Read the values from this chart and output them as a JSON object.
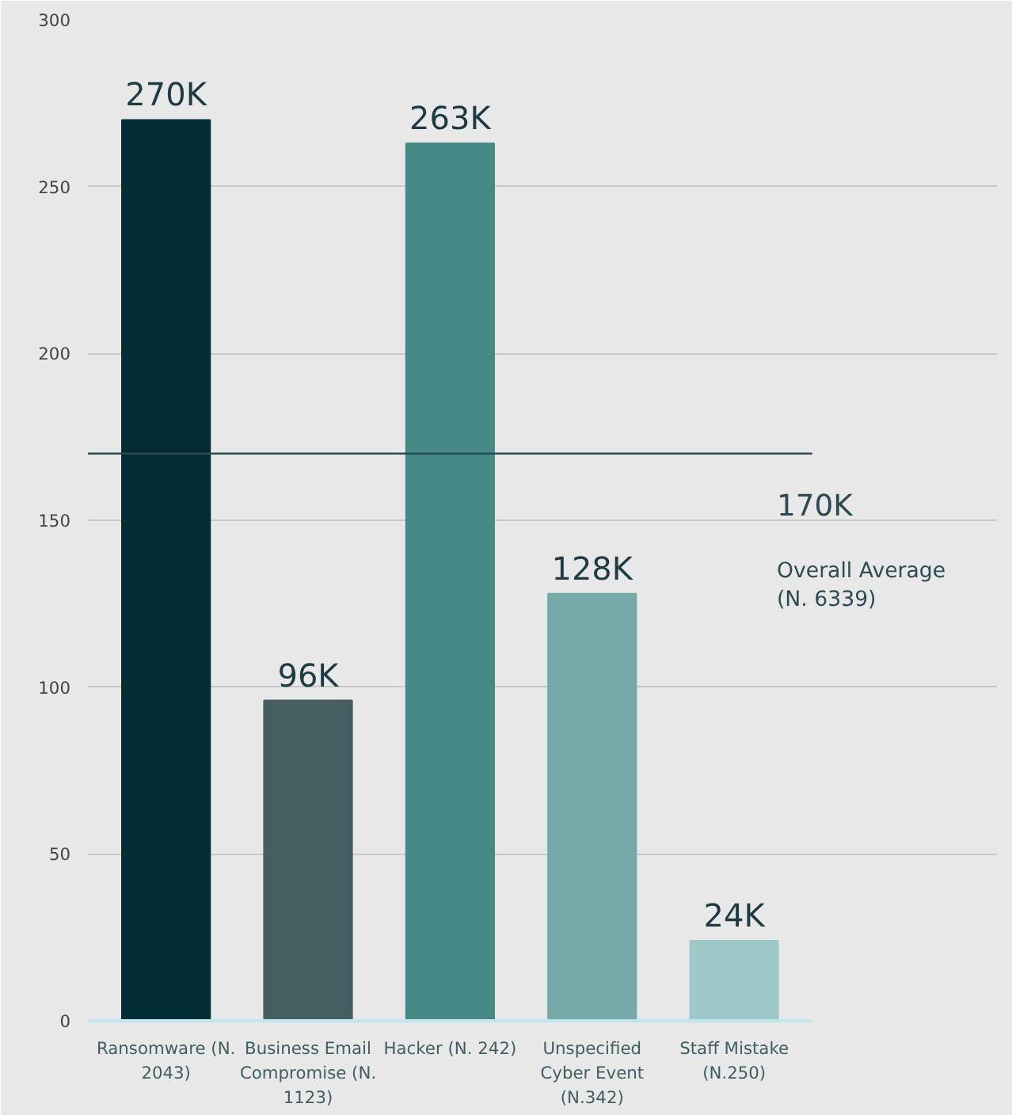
{
  "chart_data": {
    "type": "bar",
    "categories": [
      "Ransomware (N.\n2043)",
      "Business Email\nCompromise (N.\n1123)",
      "Hacker (N. 242)",
      "Unspecified\nCyber Event\n(N.342)",
      "Staff Mistake\n(N.250)"
    ],
    "values": [
      270,
      96,
      263,
      128,
      24
    ],
    "colors": [
      "#032d35",
      "#455e62",
      "#468a87",
      "#75aaa9",
      "#a0c8c8"
    ],
    "value_labels": [
      "270K",
      "96K",
      "263K",
      "128K",
      "24K"
    ],
    "ylim": [
      0,
      300
    ],
    "yticks": [
      0,
      50,
      100,
      150,
      200,
      250,
      300
    ],
    "grid": "y",
    "ref_lines": [
      {
        "axis": "y",
        "value": 170,
        "label": "170K\nOverall Average\n(N. 6339)",
        "color": "#2b4a52"
      }
    ]
  }
}
